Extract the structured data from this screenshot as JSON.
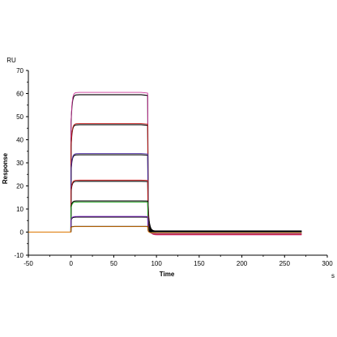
{
  "chart_data": {
    "type": "line",
    "title": "",
    "xlabel": "Time",
    "ylabel": "Response",
    "y_unit": "RU",
    "x_unit": "s",
    "xlim": [
      -50,
      300
    ],
    "ylim": [
      -10,
      70
    ],
    "x_ticks": [
      -50,
      0,
      50,
      100,
      150,
      200,
      250,
      300
    ],
    "y_ticks": [
      -10,
      0,
      10,
      20,
      30,
      40,
      50,
      60,
      70
    ],
    "grid": false,
    "legend": "none",
    "event_times": {
      "injection_start": 0,
      "injection_end": 90,
      "end": 270
    },
    "series": [
      {
        "color": "#000000",
        "plateau": 59.5,
        "dissoc_end": 0.5
      },
      {
        "color": "#cc3399",
        "plateau": 60.5,
        "dissoc_end": -1.2
      },
      {
        "color": "#000000",
        "plateau": 46.5,
        "dissoc_end": 0.4
      },
      {
        "color": "#cc2222",
        "plateau": 47.0,
        "dissoc_end": -1.0
      },
      {
        "color": "#000000",
        "plateau": 33.5,
        "dissoc_end": 0.3
      },
      {
        "color": "#5533aa",
        "plateau": 34.0,
        "dissoc_end": -0.8
      },
      {
        "color": "#000000",
        "plateau": 22.0,
        "dissoc_end": 0.3
      },
      {
        "color": "#cc2222",
        "plateau": 22.5,
        "dissoc_end": -0.9
      },
      {
        "color": "#000000",
        "plateau": 13.5,
        "dissoc_end": 0.2
      },
      {
        "color": "#22aa22",
        "plateau": 13.0,
        "dissoc_end": -0.5
      },
      {
        "color": "#000000",
        "plateau": 6.5,
        "dissoc_end": 0.2
      },
      {
        "color": "#8833cc",
        "plateau": 6.8,
        "dissoc_end": -0.6
      },
      {
        "color": "#000000",
        "plateau": 2.5,
        "dissoc_end": 0.1
      },
      {
        "color": "#dd7700",
        "plateau": 2.4,
        "dissoc_end": -0.4
      }
    ]
  }
}
